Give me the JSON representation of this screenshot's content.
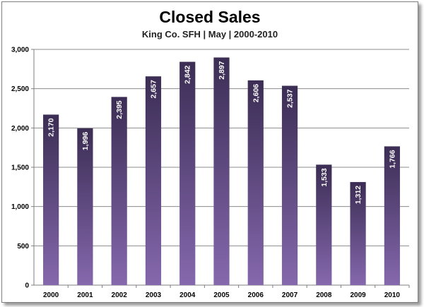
{
  "chart_data": {
    "type": "bar",
    "title": "Closed Sales",
    "subtitle": "King Co. SFH | May | 2000-2010",
    "categories": [
      "2000",
      "2001",
      "2002",
      "2003",
      "2004",
      "2005",
      "2006",
      "2007",
      "2008",
      "2009",
      "2010"
    ],
    "values": [
      2170,
      1996,
      2395,
      2657,
      2842,
      2897,
      2606,
      2537,
      1533,
      1312,
      1766
    ],
    "data_labels": [
      "2,170",
      "1,996",
      "2,395",
      "2,657",
      "2,842",
      "2,897",
      "2,606",
      "2,537",
      "1,533",
      "1,312",
      "1,766"
    ],
    "y_ticks": [
      0,
      500,
      1000,
      1500,
      2000,
      2500,
      3000
    ],
    "y_tick_labels": [
      "0",
      "500",
      "1,000",
      "1,500",
      "2,000",
      "2,500",
      "3,000"
    ],
    "ylim": [
      0,
      3000
    ],
    "xlabel": "",
    "ylabel": "",
    "grid": true,
    "legend": "none",
    "colors": {
      "bar_top": "#3b2d54",
      "bar_bottom": "#8568ad",
      "gridline": "#8c8c8c",
      "axis": "#7f7f7f"
    }
  }
}
